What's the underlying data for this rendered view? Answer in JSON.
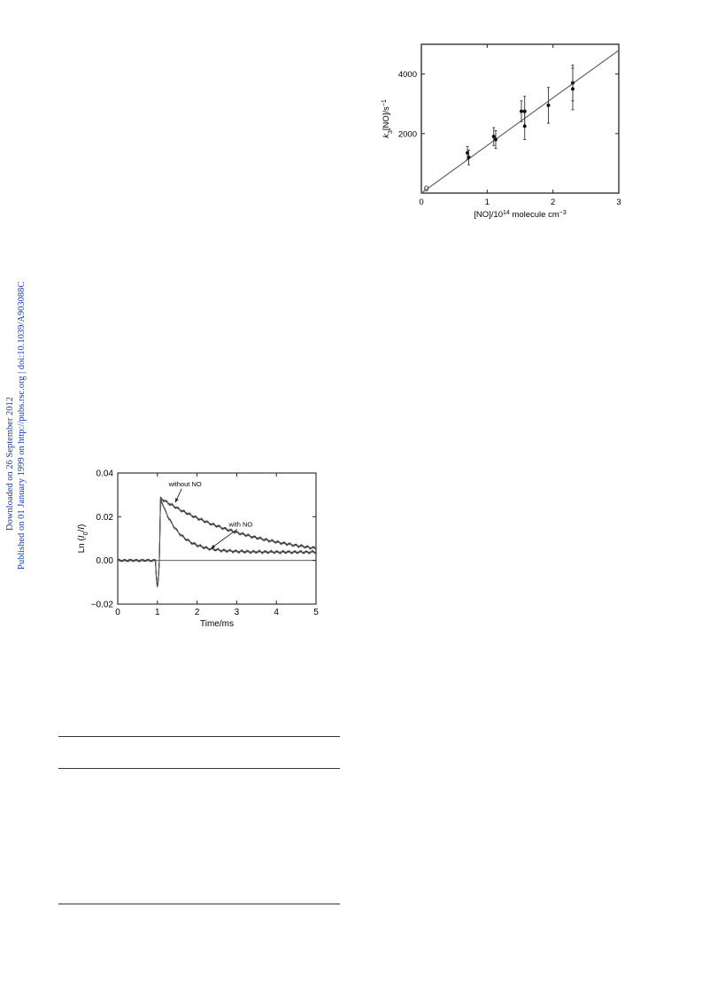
{
  "side_note": {
    "line1": "Downloaded on 26 September 2012",
    "line2": "Published on 01 January 1999 on http://pubs.rsc.org | doi:10.1039/A903088C",
    "color": "#1a3aa8"
  },
  "chart_data": [
    {
      "type": "scatter",
      "title": "",
      "xlabel_prefix": "[NO]/10",
      "xlabel_sup": "14",
      "xlabel_suffix": " molecule cm",
      "xlabel_sup2": "−3",
      "ylabel_k": "k",
      "ylabel_sub": "3",
      "ylabel_rest": "[NO]/s",
      "ylabel_sup": "−1",
      "xlim": [
        0,
        3
      ],
      "ylim": [
        0,
        5000
      ],
      "x_ticks": [
        0,
        1,
        2,
        3
      ],
      "x_tick_labels": [
        "0",
        "1",
        "2",
        "3"
      ],
      "y_ticks": [
        0,
        2000,
        4000
      ],
      "y_tick_labels": [
        "0",
        "2000",
        "4000"
      ],
      "grid": false,
      "points": [
        {
          "x": 0.7,
          "y": 1350,
          "err": 220
        },
        {
          "x": 0.72,
          "y": 1200,
          "err": 250
        },
        {
          "x": 1.1,
          "y": 1900,
          "err": 300
        },
        {
          "x": 1.13,
          "y": 1800,
          "err": 300
        },
        {
          "x": 1.52,
          "y": 2750,
          "err": 350
        },
        {
          "x": 1.57,
          "y": 2750,
          "err": 500
        },
        {
          "x": 1.57,
          "y": 2250,
          "err": 450
        },
        {
          "x": 1.93,
          "y": 2950,
          "err": 600
        },
        {
          "x": 2.3,
          "y": 3700,
          "err": 600
        },
        {
          "x": 2.3,
          "y": 3500,
          "err": 700
        }
      ],
      "fit_line": {
        "x": [
          0,
          3
        ],
        "y": [
          0,
          4800
        ]
      }
    },
    {
      "type": "line",
      "title": "",
      "xlabel": "Time/ms",
      "ylabel_prefix": "Ln (",
      "ylabel_I0": "I",
      "ylabel_sub": "0",
      "ylabel_mid": "/",
      "ylabel_I": "I",
      "ylabel_suffix": ")",
      "xlim": [
        0,
        5
      ],
      "ylim": [
        -0.02,
        0.04
      ],
      "x_ticks": [
        0,
        1,
        2,
        3,
        4,
        5
      ],
      "x_tick_labels": [
        "0",
        "1",
        "2",
        "3",
        "4",
        "5"
      ],
      "y_ticks": [
        -0.02,
        0,
        0.02,
        0.04
      ],
      "y_tick_labels": [
        "−0.02",
        "0.00",
        "0.02",
        "0.04"
      ],
      "grid": false,
      "annotations": [
        {
          "text": "without NO",
          "tx": 1.7,
          "ty": 0.034,
          "ax": 1.45,
          "ay": 0.0265
        },
        {
          "text": "with NO",
          "tx": 3.1,
          "ty": 0.0155,
          "ax": 2.35,
          "ay": 0.0055
        }
      ],
      "series": [
        {
          "key": "without",
          "decay_tau": 2.4,
          "peak": 0.0285,
          "baseline": 0.0,
          "min": -0.0115
        },
        {
          "key": "with",
          "decay_tau": 0.45,
          "peak": 0.0285,
          "plateau": 0.0038,
          "min": -0.0115
        }
      ],
      "baseline_y": 0
    }
  ]
}
